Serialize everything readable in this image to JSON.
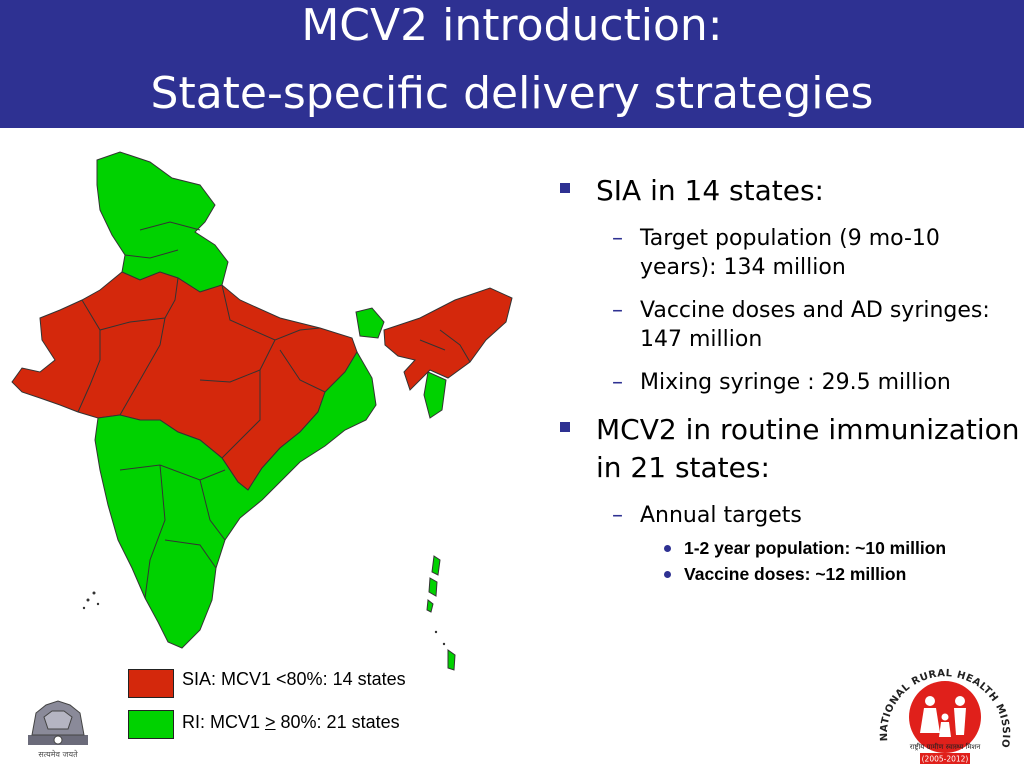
{
  "title": {
    "line1": "MCV2 introduction:",
    "line2": "State-specific delivery strategies"
  },
  "colors": {
    "title_bar": "#2e3192",
    "sia_states": "#d4280c",
    "ri_states": "#00d200",
    "logo_red": "#e0201b"
  },
  "bullets": [
    {
      "text": "SIA in 14 states:",
      "sub": [
        {
          "text": "Target population (9 mo-10 years): 134 million"
        },
        {
          "text": "Vaccine doses and AD syringes: 147 million"
        },
        {
          "text": "Mixing syringe : 29.5 million"
        }
      ]
    },
    {
      "text": "MCV2 in routine immunization in 21 states:",
      "sub": [
        {
          "text": "Annual targets",
          "sub": [
            "1-2 year population: ~10 million",
            "Vaccine doses: ~12 million"
          ]
        }
      ]
    }
  ],
  "legend": {
    "sia": "SIA: MCV1 <80%: 14 states",
    "ri_prefix": "RI: MCV1 ",
    "ri_symbol": ">",
    "ri_suffix": " 80%: 21 states"
  },
  "emblem_caption": "सत्यमेव जयते",
  "logo": {
    "arc_text": "NATIONAL RURAL HEALTH MISSION",
    "hindi": "राष्ट्रीय ग्रामीण स्वास्थ्य मिशन",
    "years": "(2005-2012)"
  }
}
